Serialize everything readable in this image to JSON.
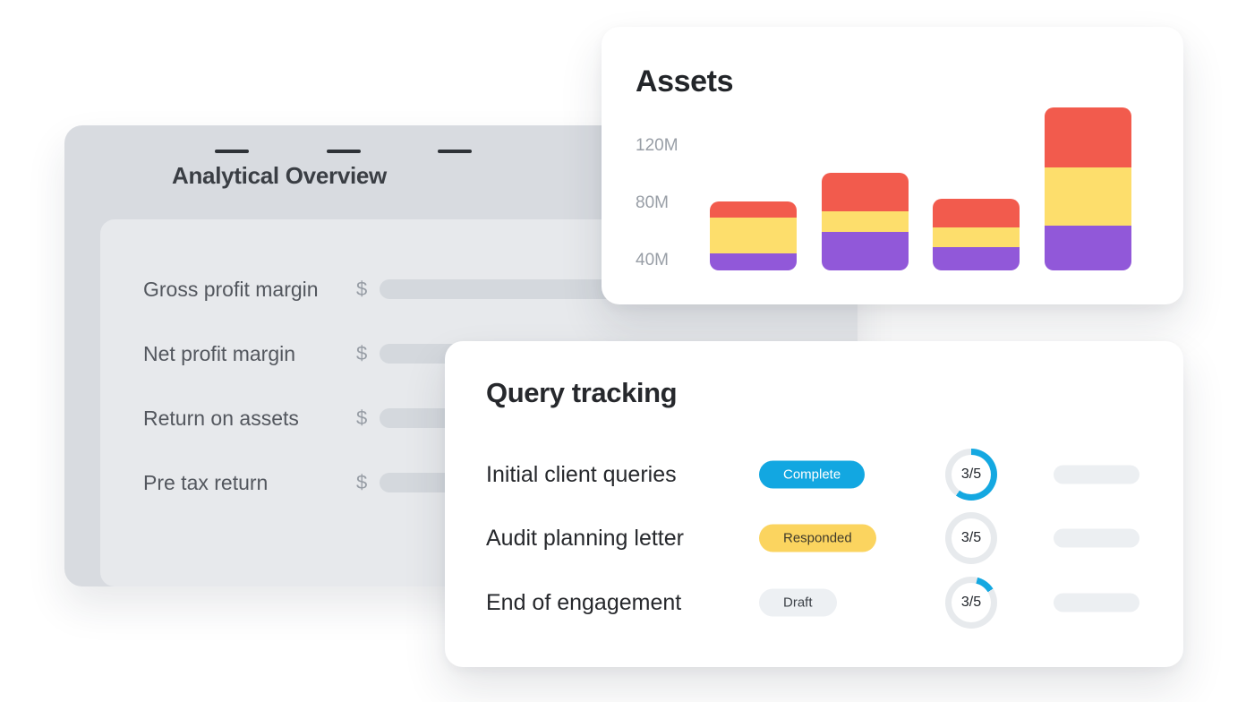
{
  "page": {
    "background": "#FFFFFF"
  },
  "analytical_overview": {
    "title": "Analytical Overview",
    "menu_icon": "hamburger-icon",
    "panel_color": "#E7E9EC",
    "card_color": "#D8DBE0",
    "rows": [
      {
        "label": "Gross profit margin",
        "currency": "$"
      },
      {
        "label": "Net profit margin",
        "currency": "$"
      },
      {
        "label": "Return on assets",
        "currency": "$"
      },
      {
        "label": "Pre tax return",
        "currency": "$"
      }
    ]
  },
  "chart_data": {
    "type": "bar",
    "stacked": true,
    "title": "Assets",
    "categories": [
      "",
      "",
      "",
      ""
    ],
    "series": [
      {
        "name": "red",
        "color": "#F25B4D",
        "values": [
          11,
          27,
          20,
          42
        ]
      },
      {
        "name": "yellow",
        "color": "#FDDE6C",
        "values": [
          25,
          14,
          14,
          41
        ]
      },
      {
        "name": "purple",
        "color": "#9158D9",
        "values": [
          12,
          27,
          16,
          31
        ]
      }
    ],
    "unit": "M",
    "y_ticks": [
      "120M",
      "80M",
      "40M"
    ],
    "xlabel": "",
    "ylabel": "",
    "grid": false,
    "legend": false
  },
  "query_tracking": {
    "title": "Query tracking",
    "rows": [
      {
        "label": "Initial client queries",
        "status": "Complete",
        "status_bg": "#12A7E1",
        "status_text_color": "#FFFFFF",
        "progress_label": "3/5",
        "ring_segments": [
          {
            "color": "#14A8E1",
            "from": 0,
            "to": 60
          },
          {
            "color": "#E7EAED",
            "from": 60,
            "to": 100
          }
        ]
      },
      {
        "label": "Audit planning letter",
        "status": "Responded",
        "status_bg": "#FBD45F",
        "status_text_color": "#3F3A2B",
        "progress_label": "3/5",
        "ring_segments": [
          {
            "color": "#E7EAED",
            "from": 0,
            "to": 100
          }
        ]
      },
      {
        "label": "End of engagement",
        "status": "Draft",
        "status_bg": "#EDF0F3",
        "status_text_color": "#3C4147",
        "progress_label": "3/5",
        "ring_segments": [
          {
            "color": "#E7EAED",
            "from": 0,
            "to": 4
          },
          {
            "color": "#14A8E1",
            "from": 4,
            "to": 16
          },
          {
            "color": "#E7EAED",
            "from": 16,
            "to": 100
          }
        ]
      }
    ]
  }
}
